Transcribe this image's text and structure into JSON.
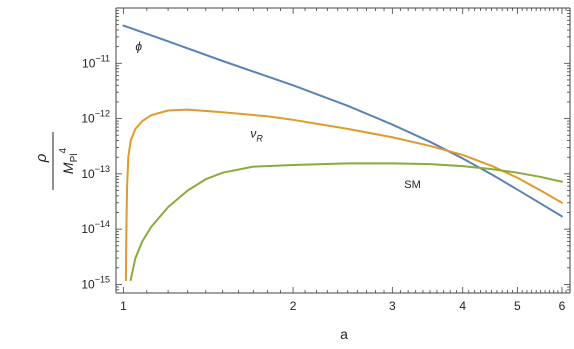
{
  "chart_data": {
    "type": "line",
    "title": "",
    "xlabel": "a",
    "ylabel": {
      "numerator": "ρ",
      "denominator_base": "M",
      "denominator_sub": "Pl",
      "denominator_sup": "4"
    },
    "xscale": "log",
    "yscale": "log",
    "xlim": [
      0.97,
      6.2
    ],
    "ylim": [
      7e-16,
      1e-10
    ],
    "x_ticks": [
      1,
      2,
      3,
      4,
      5,
      6
    ],
    "x_tick_labels": [
      "1",
      "2",
      "3",
      "4",
      "5",
      "6"
    ],
    "y_ticks": [
      1e-15,
      1e-14,
      1e-13,
      1e-12,
      1e-11
    ],
    "y_tick_labels": [
      {
        "base": "10",
        "exp": "−15"
      },
      {
        "base": "10",
        "exp": "−14"
      },
      {
        "base": "10",
        "exp": "−13"
      },
      {
        "base": "10",
        "exp": "−12"
      },
      {
        "base": "10",
        "exp": "−11"
      }
    ],
    "grid": false,
    "legend": "none",
    "series": [
      {
        "name": "ϕ",
        "color": "#5b82b6",
        "x": [
          1.0,
          1.2,
          1.5,
          2.0,
          2.5,
          3.0,
          3.5,
          4.0,
          4.5,
          5.0,
          5.5,
          6.0
        ],
        "y": [
          4.8e-11,
          2.5e-11,
          1.1e-11,
          4e-12,
          1.7e-12,
          7.8e-13,
          3.8e-13,
          1.9e-13,
          9.8e-14,
          5.2e-14,
          2.9e-14,
          1.7e-14
        ]
      },
      {
        "name": "ν_R",
        "color": "#e09a2d",
        "x": [
          1.01,
          1.012,
          1.015,
          1.02,
          1.03,
          1.05,
          1.08,
          1.12,
          1.2,
          1.3,
          1.5,
          1.8,
          2.0,
          2.5,
          3.0,
          3.5,
          4.0,
          4.5,
          5.0,
          5.5,
          6.0
        ],
        "y": [
          1.2e-15,
          1e-14,
          6e-14,
          2e-13,
          4e-13,
          6.5e-13,
          9e-13,
          1.15e-12,
          1.4e-12,
          1.45e-12,
          1.3e-12,
          1.1e-12,
          9.5e-13,
          6.5e-13,
          4.6e-13,
          3.2e-13,
          2.2e-13,
          1.4e-13,
          8.5e-14,
          5e-14,
          3e-14
        ]
      },
      {
        "name": "SM",
        "color": "#8aab3b",
        "x": [
          1.03,
          1.05,
          1.08,
          1.12,
          1.2,
          1.3,
          1.4,
          1.5,
          1.7,
          2.0,
          2.5,
          3.0,
          3.5,
          4.0,
          4.5,
          5.0,
          5.5,
          6.0
        ],
        "y": [
          1.2e-15,
          3e-15,
          6e-15,
          1.1e-14,
          2.5e-14,
          5e-14,
          8e-14,
          1.05e-13,
          1.35e-13,
          1.45e-13,
          1.55e-13,
          1.55e-13,
          1.5e-13,
          1.38e-13,
          1.22e-13,
          1.05e-13,
          8.8e-14,
          7.2e-14
        ]
      }
    ],
    "annotations": [
      {
        "text": "ϕ",
        "x": 1.05,
        "y": 1.7e-11,
        "style": "italic"
      },
      {
        "text": "ν",
        "sub": "R",
        "x": 1.68,
        "y": 4.5e-13,
        "style": "italic"
      },
      {
        "text": "SM",
        "x": 3.15,
        "y": 5.5e-14,
        "style": "plain"
      }
    ]
  }
}
